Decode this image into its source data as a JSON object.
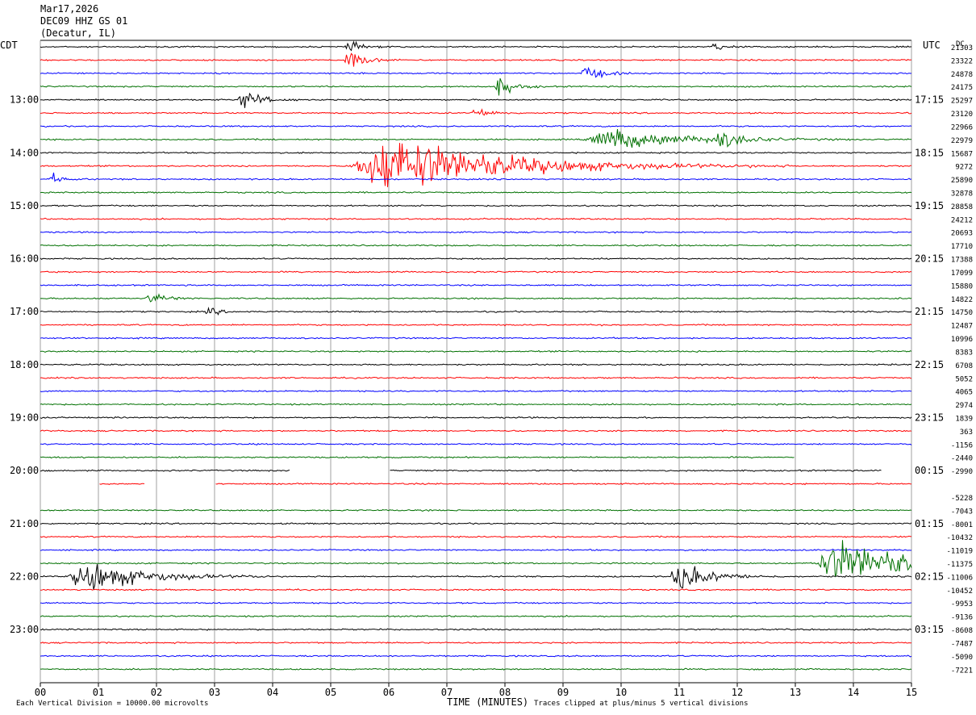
{
  "header": {
    "date": "Mar17,2026",
    "station": "DEC09 HHZ GS 01",
    "location": "(Decatur, IL)"
  },
  "left_tz": "CDT",
  "right_tz": "UTC",
  "dc_label": "DC",
  "footer": {
    "scale_note": "Each Vertical Division = 10000.00 microvolts",
    "axis_title": "TIME (MINUTES)",
    "clip_note": "Traces clipped at plus/minus 5 vertical divisions"
  },
  "chart_data": {
    "type": "line",
    "title": "DEC09 HHZ GS 01 (Decatur, IL)",
    "xlabel": "TIME (MINUTES)",
    "xlim": [
      0,
      15
    ],
    "x_ticks": [
      "00",
      "01",
      "02",
      "03",
      "04",
      "05",
      "06",
      "07",
      "08",
      "09",
      "10",
      "11",
      "12",
      "13",
      "14",
      "15"
    ],
    "grid": "vertical lines every minute",
    "trace_colors": [
      "#000000",
      "#ff0000",
      "#0000ff",
      "#007000"
    ],
    "left_time_labels": [
      "13:00",
      "14:00",
      "15:00",
      "16:00",
      "17:00",
      "18:00",
      "19:00",
      "20:00",
      "21:00",
      "22:00",
      "23:00"
    ],
    "right_time_labels": [
      "17:15",
      "18:15",
      "19:15",
      "20:15",
      "21:15",
      "22:15",
      "23:15",
      "00:15",
      "01:15",
      "02:15",
      "03:15"
    ],
    "dc_offsets": [
      "21303",
      "23322",
      "24878",
      "24175",
      "25297",
      "23120",
      "22966",
      "22979",
      "15687",
      "9272",
      "25890",
      "32878",
      "28858",
      "24212",
      "20693",
      "17710",
      "17388",
      "17099",
      "15880",
      "14822",
      "14750",
      "12487",
      "10996",
      "8383",
      "6708",
      "5052",
      "4065",
      "2974",
      "1839",
      "363",
      "-1156",
      "-2440",
      "-2990",
      "",
      "-5228",
      "-7043",
      "-8001",
      "-10432",
      "-11019",
      "-11375",
      "-11006",
      "-10452",
      "-9953",
      "-9136",
      "-8608",
      "-7487",
      "-5090",
      "-7221"
    ],
    "trace_count": 48,
    "traces_per_hour": 4,
    "minutes_per_trace": 15,
    "events": [
      {
        "trace": 0,
        "minute": 5.3,
        "amp": 0.6,
        "width": 0.25
      },
      {
        "trace": 0,
        "minute": 11.6,
        "amp": 0.5,
        "width": 0.2
      },
      {
        "trace": 1,
        "minute": 5.3,
        "amp": 1.2,
        "width": 0.3
      },
      {
        "trace": 2,
        "minute": 9.4,
        "amp": 0.9,
        "width": 0.3
      },
      {
        "trace": 3,
        "minute": 7.9,
        "amp": 1.0,
        "width": 0.3
      },
      {
        "trace": 4,
        "minute": 3.5,
        "amp": 1.1,
        "width": 0.35
      },
      {
        "trace": 5,
        "minute": 7.5,
        "amp": 0.6,
        "width": 0.3
      },
      {
        "trace": 7,
        "minute": 9.8,
        "amp": 1.2,
        "width": 1.4
      },
      {
        "trace": 7,
        "minute": 11.7,
        "amp": 0.9,
        "width": 0.4
      },
      {
        "trace": 9,
        "minute": 6.0,
        "amp": 3.2,
        "width": 2.3
      },
      {
        "trace": 10,
        "minute": 0.2,
        "amp": 0.6,
        "width": 0.2
      },
      {
        "trace": 19,
        "minute": 1.9,
        "amp": 0.7,
        "width": 0.3
      },
      {
        "trace": 20,
        "minute": 2.9,
        "amp": 0.5,
        "width": 0.2
      },
      {
        "trace": 39,
        "minute": 13.8,
        "amp": 2.3,
        "width": 1.8
      },
      {
        "trace": 40,
        "minute": 0.8,
        "amp": 1.8,
        "width": 1.1
      },
      {
        "trace": 40,
        "minute": 11.0,
        "amp": 1.6,
        "width": 0.6
      }
    ],
    "gaps": [
      {
        "trace": 32,
        "from": 4.3,
        "to": 6.0
      },
      {
        "trace": 33,
        "from": 0.0,
        "to": 1.0
      },
      {
        "trace": 33,
        "from": 1.8,
        "to": 3.0
      },
      {
        "trace": 34,
        "from": 0.0,
        "to": 15.0
      },
      {
        "trace": 31,
        "from": 13.0,
        "to": 15.0
      },
      {
        "trace": 32,
        "from": 14.5,
        "to": 15.0
      }
    ]
  }
}
